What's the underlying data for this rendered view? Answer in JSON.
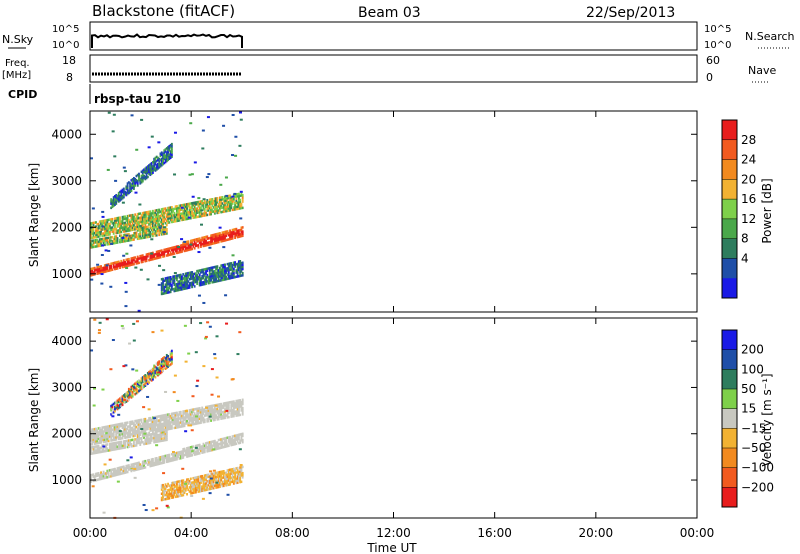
{
  "header": {
    "station": "Blackstone (fitACF)",
    "beam": "Beam 03",
    "date": "22/Sep/2013"
  },
  "top_panels": {
    "nsky_label": "N.Sky",
    "nsearch_label": "N.Search",
    "nsky_ticks": [
      "10^5",
      "10^0"
    ],
    "freq_label_1": "Freq.",
    "freq_label_2": "[MHz]",
    "freq_ticks": [
      "18",
      "8"
    ],
    "nave_ticks": [
      "60",
      "0"
    ],
    "nave_label": "Nave",
    "cpid_label": "CPID",
    "cpid_value": "rbsp-tau 210"
  },
  "colors": {
    "power": [
      "#1a1ae6",
      "#1f4fa8",
      "#2e7d5e",
      "#4aa84a",
      "#7ed04a",
      "#f2b233",
      "#f28a1f",
      "#f25a1f",
      "#e81d1d"
    ],
    "velocity": [
      "#e81d1d",
      "#f25a1f",
      "#f28a1f",
      "#f2b233",
      "#c8c8c0",
      "#7ed04a",
      "#2e7d5e",
      "#1f4fa8",
      "#1a1ae6"
    ]
  },
  "chart_data": [
    {
      "type": "heatmap",
      "title": "Power",
      "ylabel": "Slant Range [km]",
      "xlabel": "",
      "x_ticks": [
        "00:00",
        "04:00",
        "08:00",
        "12:00",
        "16:00",
        "20:00",
        "00:00"
      ],
      "y_ticks": [
        "1000",
        "2000",
        "3000",
        "4000"
      ],
      "xlim_hours": [
        0,
        24
      ],
      "ylim_km": [
        180,
        4500
      ],
      "data_extent_hours": [
        0,
        6
      ],
      "colorbar_label": "Power [dB]",
      "colorbar_ticks": [
        "4",
        "8",
        "12",
        "16",
        "20",
        "24",
        "28"
      ],
      "bands": [
        {
          "t": [
            0.0,
            6.0
          ],
          "r0": [
            950,
            1800
          ],
          "r1": [
            1100,
            2000
          ],
          "level": "high"
        },
        {
          "t": [
            0.0,
            3.0
          ],
          "r0": [
            1550,
            1850
          ],
          "r1": [
            1700,
            2050
          ],
          "level": "mid"
        },
        {
          "t": [
            0.0,
            6.0
          ],
          "r0": [
            1750,
            2400
          ],
          "r1": [
            2100,
            2750
          ],
          "level": "mid"
        },
        {
          "t": [
            0.8,
            3.2
          ],
          "r0": [
            2400,
            3500
          ],
          "r1": [
            2600,
            3800
          ],
          "level": "low"
        },
        {
          "t": [
            2.8,
            6.0
          ],
          "r0": [
            550,
            950
          ],
          "r1": [
            900,
            1300
          ],
          "level": "low"
        }
      ]
    },
    {
      "type": "heatmap",
      "title": "Velocity",
      "ylabel": "Slant Range [km]",
      "xlabel": "Time UT",
      "x_ticks": [
        "00:00",
        "04:00",
        "08:00",
        "12:00",
        "16:00",
        "20:00",
        "00:00"
      ],
      "y_ticks": [
        "1000",
        "2000",
        "3000",
        "4000"
      ],
      "xlim_hours": [
        0,
        24
      ],
      "ylim_km": [
        180,
        4500
      ],
      "data_extent_hours": [
        0,
        6
      ],
      "colorbar_label": "Velocity [m s⁻¹]",
      "colorbar_ticks": [
        "200",
        "100",
        "50",
        "15",
        "−15",
        "−50",
        "−100",
        "−200"
      ],
      "bands": [
        {
          "t": [
            0.0,
            6.0
          ],
          "r0": [
            950,
            1800
          ],
          "r1": [
            1100,
            2000
          ],
          "level": "grey"
        },
        {
          "t": [
            0.0,
            3.0
          ],
          "r0": [
            1550,
            1850
          ],
          "r1": [
            1700,
            2050
          ],
          "level": "grey"
        },
        {
          "t": [
            0.0,
            6.0
          ],
          "r0": [
            1750,
            2400
          ],
          "r1": [
            2100,
            2750
          ],
          "level": "grey"
        },
        {
          "t": [
            0.8,
            3.2
          ],
          "r0": [
            2400,
            3500
          ],
          "r1": [
            2600,
            3800
          ],
          "level": "mixed"
        },
        {
          "t": [
            2.8,
            6.0
          ],
          "r0": [
            550,
            950
          ],
          "r1": [
            900,
            1300
          ],
          "level": "negative"
        }
      ]
    }
  ]
}
